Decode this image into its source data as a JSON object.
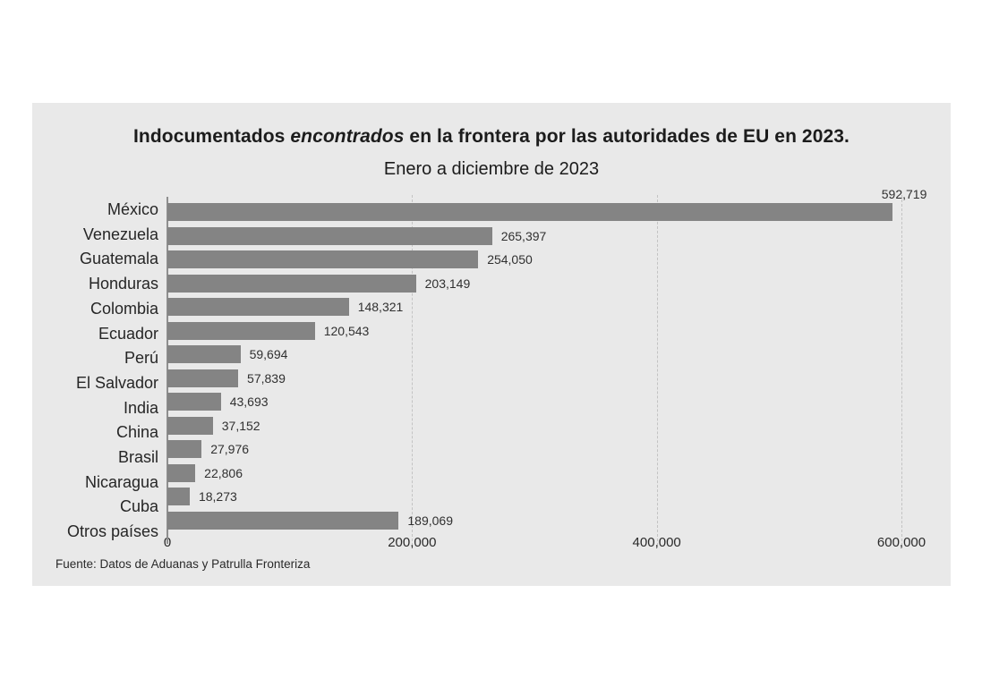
{
  "page": {
    "background": "#ffffff"
  },
  "panel": {
    "background": "#e9e9e9"
  },
  "header": {
    "title_prefix": "Indocumentados ",
    "title_italic": "encontrados",
    "title_suffix": " en la frontera por las autoridades de EU en 2023.",
    "subtitle": "Enero a diciembre de 2023"
  },
  "footer": {
    "source": "Fuente: Datos de Aduanas y Patrulla Fronteriza"
  },
  "chart_data": {
    "type": "bar",
    "orientation": "horizontal",
    "title": "Indocumentados encontrados en la frontera por las autoridades de EU en 2023.",
    "subtitle": "Enero a diciembre de 2023",
    "categories": [
      "México",
      "Venezuela",
      "Guatemala",
      "Honduras",
      "Colombia",
      "Ecuador",
      "Perú",
      "El Salvador",
      "India",
      "China",
      "Brasil",
      "Nicaragua",
      "Cuba",
      "Otros países"
    ],
    "values": [
      592719,
      265397,
      254050,
      203149,
      148321,
      120543,
      59694,
      57839,
      43693,
      37152,
      27976,
      22806,
      18273,
      189069
    ],
    "value_labels": [
      "592,719",
      "265,397",
      "254,050",
      "203,149",
      "148,321",
      "120,543",
      "59,694",
      "57,839",
      "43,693",
      "37,152",
      "27,976",
      "22,806",
      "18,273",
      "189,069"
    ],
    "xlabel": "",
    "ylabel": "",
    "xlim": [
      0,
      600000
    ],
    "x_ticks": [
      {
        "value": 0,
        "label": "0"
      },
      {
        "value": 200000,
        "label": "200,000"
      },
      {
        "value": 400000,
        "label": "400,000"
      },
      {
        "value": 600000,
        "label": "600,000"
      }
    ],
    "grid": "vertical-dashed",
    "legend": "none",
    "bar_color": "#848484",
    "source": "Fuente: Datos de Aduanas y Patrulla Fronteriza"
  }
}
